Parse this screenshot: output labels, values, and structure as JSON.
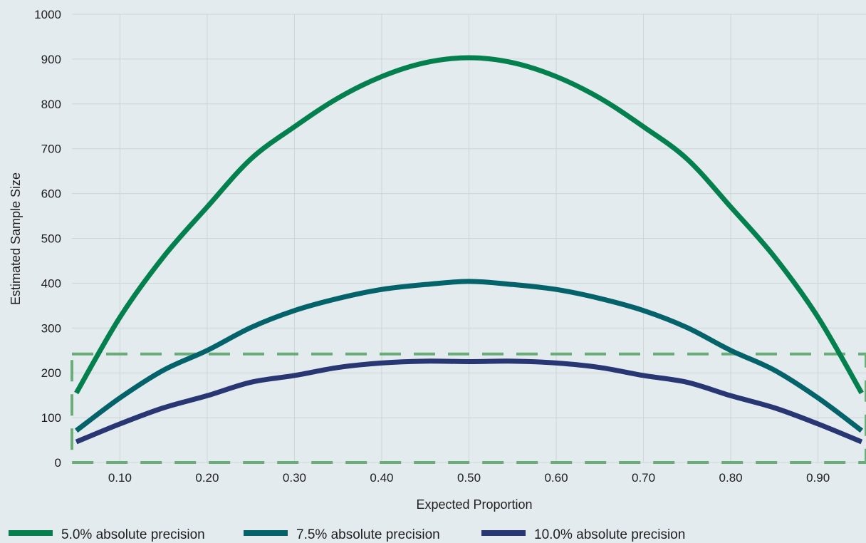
{
  "chart_data": {
    "type": "line",
    "title": "",
    "xlabel": "Expected Proportion",
    "ylabel": "Estimated Sample Size",
    "xlim": [
      0.045,
      0.955
    ],
    "ylim": [
      0,
      1000
    ],
    "x_ticks": [
      0.1,
      0.2,
      0.3,
      0.4,
      0.5,
      0.6,
      0.7,
      0.8,
      0.9
    ],
    "x_tick_labels": [
      "0.10",
      "0.20",
      "0.30",
      "0.40",
      "0.50",
      "0.60",
      "0.70",
      "0.80",
      "0.90"
    ],
    "y_ticks": [
      0,
      100,
      200,
      300,
      400,
      500,
      600,
      700,
      800,
      900,
      1000
    ],
    "y_tick_labels": [
      "0",
      "100",
      "200",
      "300",
      "400",
      "500",
      "600",
      "700",
      "800",
      "900",
      "1000"
    ],
    "grid": true,
    "legend_position": "bottom-left",
    "x": [
      0.05,
      0.1,
      0.15,
      0.2,
      0.25,
      0.3,
      0.35,
      0.4,
      0.45,
      0.5,
      0.55,
      0.6,
      0.65,
      0.7,
      0.75,
      0.8,
      0.85,
      0.9,
      0.95
    ],
    "series": [
      {
        "name": "5.0% absolute precision",
        "color": "#04804e",
        "values": [
          155,
          324,
          459,
          570,
          677,
          749,
          813,
          861,
          892,
          903,
          892,
          861,
          813,
          749,
          677,
          570,
          459,
          324,
          155
        ]
      },
      {
        "name": "7.5% absolute precision",
        "color": "#04636a",
        "values": [
          71,
          144,
          206,
          250,
          301,
          339,
          366,
          386,
          397,
          404,
          397,
          386,
          366,
          339,
          301,
          250,
          206,
          144,
          71
        ]
      },
      {
        "name": "10.0% absolute precision",
        "color": "#283674",
        "values": [
          46,
          86,
          122,
          149,
          179,
          194,
          212,
          222,
          226,
          225,
          226,
          222,
          212,
          194,
          179,
          149,
          122,
          86,
          46
        ]
      }
    ],
    "highlight_box": {
      "x_range": [
        0.045,
        0.955
      ],
      "y_range": [
        0,
        242
      ],
      "color": "#6aad79",
      "style": "dashed"
    }
  }
}
